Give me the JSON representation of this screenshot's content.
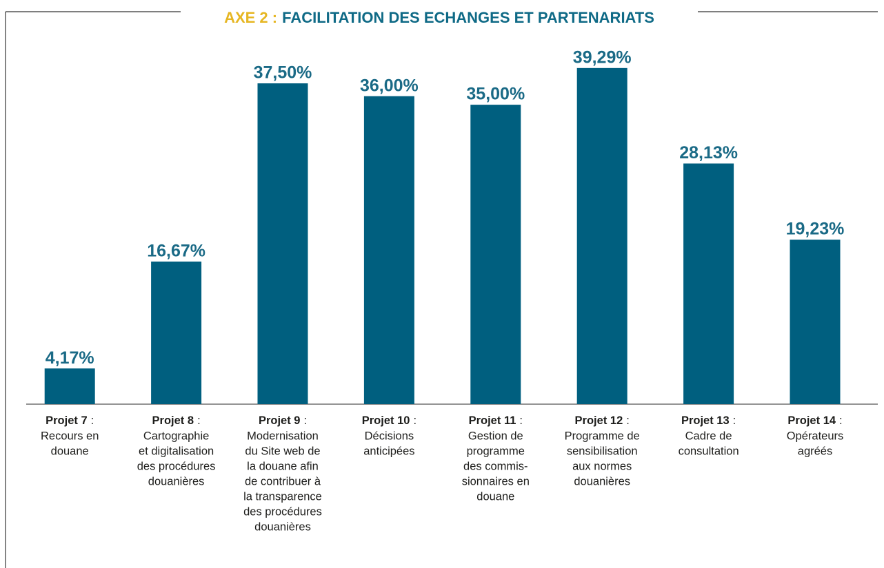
{
  "chart_data": {
    "type": "bar",
    "title_prefix": "AXE 2 :",
    "title": "FACILITATION DES ECHANGES ET PARTENARIATS",
    "categories": [
      "Projet 7",
      "Projet 8",
      "Projet 9",
      "Projet 10",
      "Projet 11",
      "Projet 12",
      "Projet 13",
      "Projet 14"
    ],
    "category_separator": ":",
    "category_descriptions": [
      [
        "Recours en",
        "douane"
      ],
      [
        "Cartographie",
        "et digitalisation",
        "des procédures",
        "douanières"
      ],
      [
        "Modernisation",
        "du Site web de",
        "la douane afin",
        "de contribuer à",
        "la transparence",
        "des procédures",
        "douanières"
      ],
      [
        "Décisions",
        "anticipées"
      ],
      [
        "Gestion de",
        "programme",
        "des commis-",
        "sionnaires en",
        "douane"
      ],
      [
        "Programme de",
        "sensibilisation",
        "aux normes",
        "douanières"
      ],
      [
        "Cadre de",
        "consultation"
      ],
      [
        "Opérateurs",
        "agréés"
      ]
    ],
    "values": [
      4.17,
      16.67,
      37.5,
      36,
      35,
      39.29,
      28.13,
      19.23
    ],
    "value_labels": [
      "4,17%",
      "16,67%",
      "37,50%",
      "36,00%",
      "35,00%",
      "39,29%",
      "28,13%",
      "19,23%"
    ],
    "color": "#005f7f",
    "ylim": [
      0,
      40
    ]
  }
}
